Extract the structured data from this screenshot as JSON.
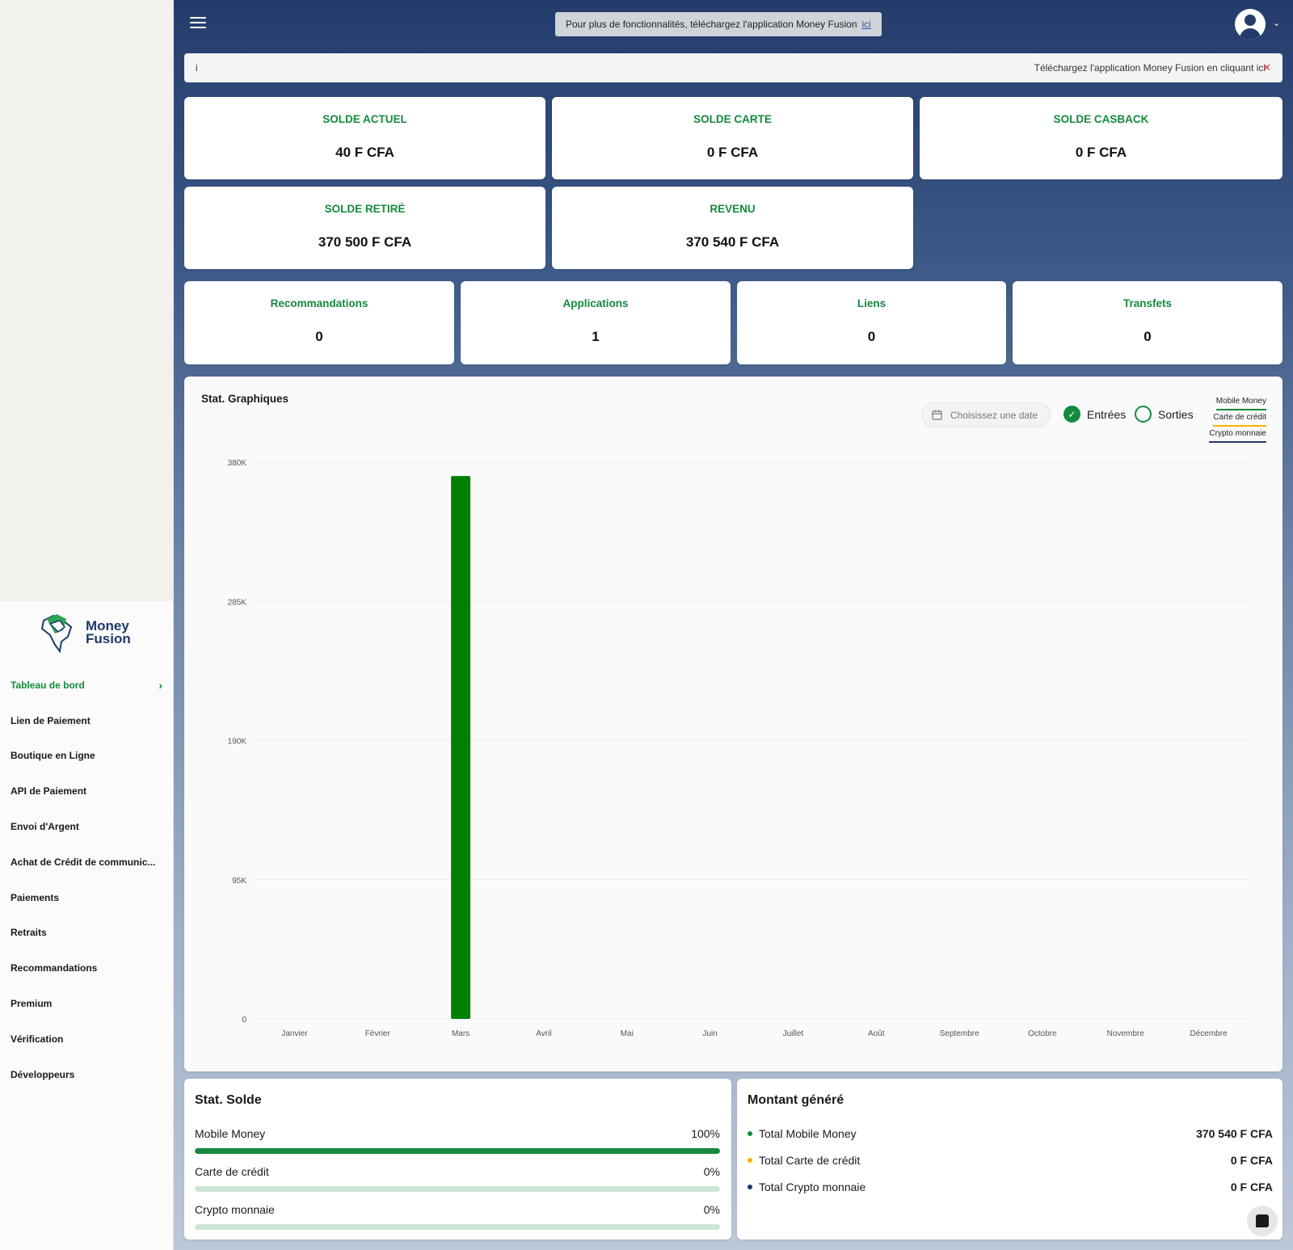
{
  "sidebar": {
    "logo": {
      "line1": "Money",
      "line2": "Fusion"
    },
    "items": [
      {
        "label": "Tableau de bord",
        "active": true
      },
      {
        "label": "Lien de Paiement"
      },
      {
        "label": "Boutique en Ligne"
      },
      {
        "label": "API de Paiement"
      },
      {
        "label": "Envoi d'Argent"
      },
      {
        "label": "Achat de Crédit de communic..."
      },
      {
        "label": "Paiements"
      },
      {
        "label": "Retraits"
      },
      {
        "label": "Recommandations"
      },
      {
        "label": "Premium"
      },
      {
        "label": "Vérification"
      },
      {
        "label": "Développeurs"
      }
    ]
  },
  "header": {
    "promo_text": "Pour plus de fonctionnalités, téléchargez l'application Money Fusion",
    "promo_link": "ici",
    "menu_icon": "hamburger-icon",
    "avatar_icon": "user-avatar-icon"
  },
  "info_bar": {
    "left": "i",
    "right": "Téléchargez l'application Money Fusion en cliquant ici",
    "close": "✕"
  },
  "balances": [
    {
      "title": "SOLDE ACTUEL",
      "value": "40 F CFA"
    },
    {
      "title": "SOLDE CARTE",
      "value": "0 F CFA"
    },
    {
      "title": "SOLDE CASBACK",
      "value": "0 F CFA"
    },
    {
      "title": "SOLDE RETIRÉ",
      "value": "370 500 F CFA"
    },
    {
      "title": "REVENU",
      "value": "370 540 F CFA"
    }
  ],
  "counters": [
    {
      "title": "Recommandations",
      "value": "0"
    },
    {
      "title": "Applications",
      "value": "1"
    },
    {
      "title": "Liens",
      "value": "0"
    },
    {
      "title": "Transfets",
      "value": "0"
    }
  ],
  "chart_panel": {
    "title": "Stat. Graphiques",
    "date_placeholder": "Choisissez une date",
    "radio_in": "Entrées",
    "radio_out": "Sorties",
    "legend": [
      "Mobile Money",
      "Carte de crédit",
      "Crypto monnaie"
    ]
  },
  "colors": {
    "accent": "#148a3c",
    "brand": "#1e3a6b",
    "card_yellow": "#f4b400"
  },
  "chart_data": {
    "type": "bar",
    "categories": [
      "Janvier",
      "Février",
      "Mars",
      "Avril",
      "Mai",
      "Juin",
      "Juillet",
      "Août",
      "Septembre",
      "Octobre",
      "Novembre",
      "Décembre"
    ],
    "values": [
      0,
      0,
      370540,
      0,
      0,
      0,
      0,
      0,
      0,
      0,
      0,
      0
    ],
    "ylim": [
      0,
      380000
    ],
    "yticks": [
      0,
      95000,
      190000,
      285000,
      380000
    ],
    "ytick_labels": [
      "0",
      "95K",
      "190K",
      "285K",
      "380K"
    ],
    "grid": true,
    "bar_color": "#008000"
  },
  "stat_solde": {
    "title": "Stat. Solde",
    "rows": [
      {
        "label": "Mobile Money",
        "percent_text": "100%",
        "fraction": 1.0
      },
      {
        "label": "Carte de crédit",
        "percent_text": "0%",
        "fraction": 0
      },
      {
        "label": "Crypto monnaie",
        "percent_text": "0%",
        "fraction": 0
      }
    ]
  },
  "montant": {
    "title": "Montant généré",
    "rows": [
      {
        "label": "Total Mobile Money",
        "value": "370 540 F CFA",
        "color": "#148a3c"
      },
      {
        "label": "Total Carte de crédit",
        "value": "0 F CFA",
        "color": "#f4b400"
      },
      {
        "label": "Total Crypto monnaie",
        "value": "0 F CFA",
        "color": "#1e3a6b"
      }
    ]
  }
}
